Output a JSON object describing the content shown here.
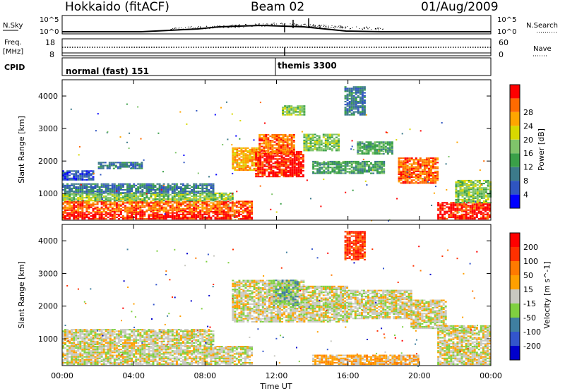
{
  "header": {
    "title": "Hokkaido (fitACF)",
    "beam": "Beam 02",
    "date": "01/Aug/2009"
  },
  "noise_panel": {
    "left_label": "N.Sky",
    "right_label": "N.Search",
    "left_ticks": [
      "10^5",
      "10^0"
    ],
    "right_ticks": [
      "10^5",
      "10^0"
    ]
  },
  "freq_panel": {
    "left_label_1": "Freq.",
    "left_label_2": "[MHz]",
    "right_label": "Nave",
    "left_ticks": [
      "18",
      "8"
    ],
    "right_ticks": [
      "60",
      "0"
    ]
  },
  "cpid_panel": {
    "label": "CPID",
    "mode_1": "normal (fast) 151",
    "mode_2": "themis 3300"
  },
  "chart_data": [
    {
      "type": "heatmap",
      "title": "",
      "xlabel": "Time UT",
      "ylabel": "Slant Range [km]",
      "x_range_hours": [
        0,
        24
      ],
      "x_ticks": [
        "00:00",
        "04:00",
        "08:00",
        "12:00",
        "16:00",
        "20:00",
        "00:00"
      ],
      "ylim": [
        180,
        4500
      ],
      "y_ticks": [
        1000,
        2000,
        3000,
        4000
      ],
      "colorbar": {
        "label": "Power [dB]",
        "ticks": [
          4,
          8,
          12,
          16,
          20,
          24,
          28
        ],
        "colors": [
          "#0000ff",
          "#2f55c0",
          "#3c7a8a",
          "#3aa048",
          "#7fc46a",
          "#d8d800",
          "#ffa500",
          "#ff6a00",
          "#ff0000"
        ]
      },
      "regions": [
        {
          "t0": 0.0,
          "t1": 10.6,
          "r0": 200,
          "r1": 420,
          "level": 8
        },
        {
          "t0": 0.0,
          "t1": 10.6,
          "r0": 420,
          "r1": 760,
          "level": 7
        },
        {
          "t0": 0.0,
          "t1": 9.5,
          "r0": 760,
          "r1": 1000,
          "level": 4
        },
        {
          "t0": 0.0,
          "t1": 8.5,
          "r0": 1000,
          "r1": 1300,
          "level": 2
        },
        {
          "t0": 0.0,
          "t1": 1.8,
          "r0": 1400,
          "r1": 1700,
          "level": 1
        },
        {
          "t0": 2.0,
          "t1": 4.5,
          "r0": 1750,
          "r1": 1950,
          "level": 2
        },
        {
          "t0": 9.5,
          "t1": 11.0,
          "r0": 1700,
          "r1": 2400,
          "level": 6
        },
        {
          "t0": 10.8,
          "t1": 13.5,
          "r0": 1500,
          "r1": 2300,
          "level": 8
        },
        {
          "t0": 11.0,
          "t1": 13.0,
          "r0": 2200,
          "r1": 2800,
          "level": 7
        },
        {
          "t0": 13.5,
          "t1": 15.5,
          "r0": 2300,
          "r1": 2800,
          "level": 4
        },
        {
          "t0": 14.0,
          "t1": 18.0,
          "r0": 1600,
          "r1": 2000,
          "level": 3
        },
        {
          "t0": 16.5,
          "t1": 18.5,
          "r0": 2200,
          "r1": 2600,
          "level": 3
        },
        {
          "t0": 18.8,
          "t1": 21.0,
          "r0": 1300,
          "r1": 2100,
          "level": 7
        },
        {
          "t0": 21.0,
          "t1": 24.0,
          "r0": 200,
          "r1": 700,
          "level": 8
        },
        {
          "t0": 22.0,
          "t1": 24.0,
          "r0": 700,
          "r1": 1400,
          "level": 4
        },
        {
          "t0": 12.3,
          "t1": 13.5,
          "r0": 3400,
          "r1": 3700,
          "level": 4
        },
        {
          "t0": 15.8,
          "t1": 17.0,
          "r0": 3400,
          "r1": 4300,
          "level": 2
        }
      ]
    },
    {
      "type": "heatmap",
      "title": "",
      "xlabel": "Time UT",
      "ylabel": "Slant Range [km]",
      "x_range_hours": [
        0,
        24
      ],
      "x_ticks": [
        "00:00",
        "04:00",
        "08:00",
        "12:00",
        "16:00",
        "20:00",
        "00:00"
      ],
      "ylim": [
        180,
        4500
      ],
      "y_ticks": [
        1000,
        2000,
        3000,
        4000
      ],
      "colorbar": {
        "label": "Velocity [m s^-1]",
        "ticks": [
          200,
          100,
          50,
          15,
          -15,
          -50,
          -100,
          -200
        ],
        "colors": [
          "#0000cc",
          "#3355cc",
          "#3f7fa0",
          "#7fd040",
          "#c8c8c0",
          "#ffa000",
          "#ff7a00",
          "#ff3000",
          "#ff0000"
        ]
      },
      "regions": [
        {
          "t0": 0.0,
          "t1": 10.6,
          "r0": 200,
          "r1": 760,
          "level": 4
        },
        {
          "t0": 0.0,
          "t1": 8.5,
          "r0": 760,
          "r1": 1300,
          "level": 4
        },
        {
          "t0": 9.5,
          "t1": 13.5,
          "r0": 1500,
          "r1": 2800,
          "level": 4
        },
        {
          "t0": 11.8,
          "t1": 13.2,
          "r0": 2000,
          "r1": 2800,
          "level": 3
        },
        {
          "t0": 13.5,
          "t1": 16.0,
          "r0": 1500,
          "r1": 2600,
          "level": 4
        },
        {
          "t0": 16.0,
          "t1": 19.5,
          "r0": 1600,
          "r1": 2500,
          "level": 4
        },
        {
          "t0": 19.5,
          "t1": 21.5,
          "r0": 1300,
          "r1": 2200,
          "level": 4
        },
        {
          "t0": 21.0,
          "t1": 24.0,
          "r0": 200,
          "r1": 1400,
          "level": 4
        },
        {
          "t0": 14.0,
          "t1": 20.0,
          "r0": 200,
          "r1": 500,
          "level": 5
        },
        {
          "t0": 15.8,
          "t1": 17.0,
          "r0": 3400,
          "r1": 4300,
          "level": 7
        }
      ]
    }
  ]
}
